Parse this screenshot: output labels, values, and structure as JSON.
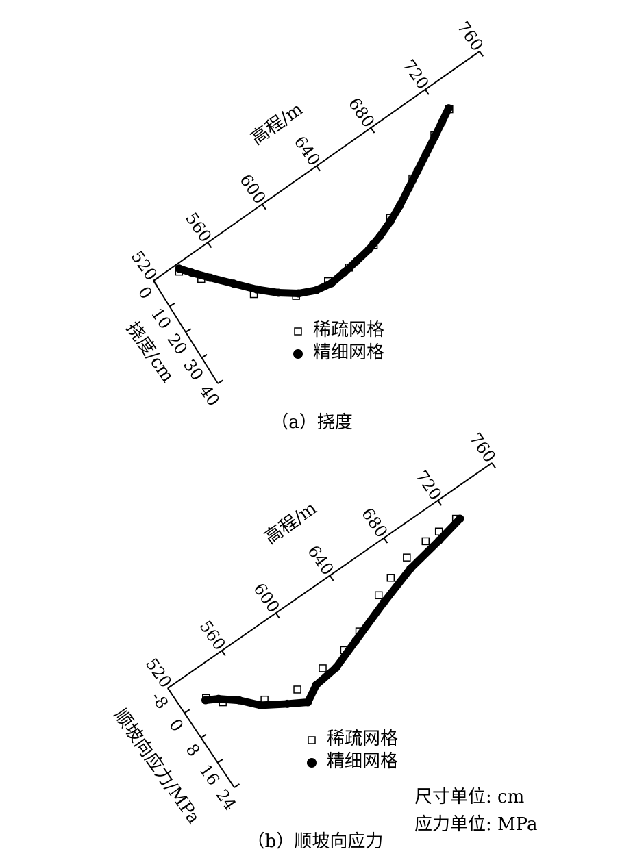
{
  "chart_data": [
    {
      "type": "scatter",
      "title": "（a）挠度",
      "x_label": "高程/m",
      "y_label": "挠度/cm",
      "xlim": [
        520,
        760
      ],
      "xticks": [
        520,
        560,
        600,
        640,
        680,
        720,
        760
      ],
      "ylim": [
        0,
        40
      ],
      "yticks": [
        0,
        10,
        20,
        30,
        40
      ],
      "series": [
        {
          "name": "稀疏网格",
          "marker": "square",
          "color": "#000000",
          "x": [
            536,
            545,
            567,
            588,
            609,
            624,
            644,
            661,
            685,
            710,
            726
          ],
          "values": [
            2.4,
            8.6,
            22.7,
            31.2,
            33.3,
            33.6,
            32.2,
            28,
            21.6,
            14.1,
            9.9
          ]
        },
        {
          "name": "精细网格",
          "marker": "circle",
          "color": "#000000",
          "x": [
            537,
            542,
            550,
            560,
            570,
            580,
            590,
            600,
            610,
            620,
            630,
            640,
            650,
            660,
            670,
            680,
            690,
            700,
            710,
            718,
            726
          ],
          "values": [
            1.6,
            5,
            10,
            16,
            22,
            27,
            31,
            33.5,
            34.5,
            34,
            33.3,
            32.5,
            31,
            29,
            26.5,
            23.5,
            20.5,
            17.5,
            14.5,
            12,
            9.5
          ]
        }
      ]
    },
    {
      "type": "scatter",
      "title": "（b）顺坡向应力",
      "x_label": "高程/m",
      "y_label": "顺坡向应力/MPa",
      "notes": [
        "尺寸单位: cm",
        "应力单位: MPa"
      ],
      "xlim": [
        520,
        760
      ],
      "xticks": [
        520,
        560,
        600,
        640,
        680,
        720,
        760
      ],
      "ylim": [
        -8,
        24
      ],
      "yticks": [
        -8,
        0,
        8,
        16,
        24
      ],
      "series": [
        {
          "name": "稀疏网格",
          "marker": "square",
          "color": "#000000",
          "x": [
            536,
            543,
            565,
            585,
            605,
            622,
            636,
            658,
            670,
            685,
            700,
            710,
            723
          ],
          "values": [
            0,
            3.5,
            9.3,
            12.1,
            11.3,
            10.6,
            8.8,
            3.8,
            1.8,
            -0.2,
            -0.9,
            -1,
            -1.2
          ]
        },
        {
          "name": "精细网格",
          "marker": "circle",
          "color": "#000000",
          "x": [
            535,
            542,
            552,
            561,
            575,
            586,
            596,
            612,
            631,
            658,
            683,
            707,
            725
          ],
          "values": [
            0.4,
            2.1,
            5.6,
            9.9,
            13.7,
            16.5,
            14,
            13.2,
            10.3,
            6.2,
            2.8,
            1,
            -0.6
          ]
        }
      ]
    }
  ]
}
